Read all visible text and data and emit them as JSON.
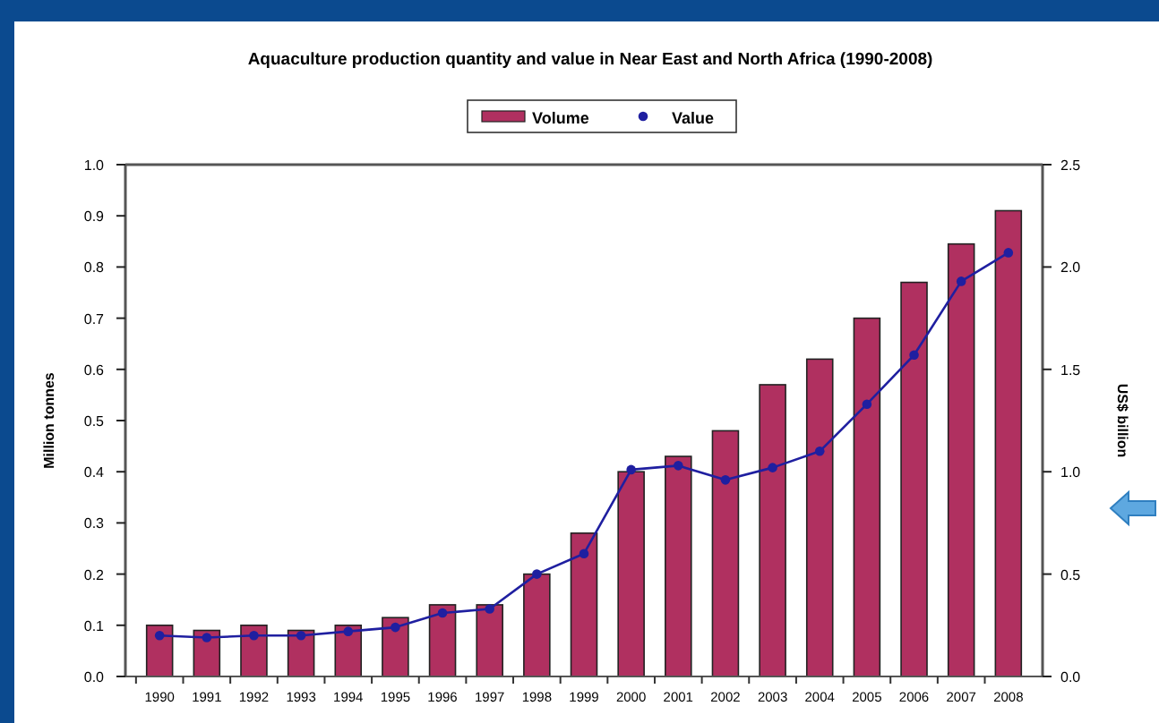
{
  "chart_data": {
    "type": "bar",
    "title": "Aquaculture production quantity and value in Near East and North Africa (1990-2008)",
    "categories": [
      "1990",
      "1991",
      "1992",
      "1993",
      "1994",
      "1995",
      "1996",
      "1997",
      "1998",
      "1999",
      "2000",
      "2001",
      "2002",
      "2003",
      "2004",
      "2005",
      "2006",
      "2007",
      "2008"
    ],
    "series": [
      {
        "name": "Volume",
        "color": "#b03060",
        "values": [
          0.1,
          0.09,
          0.1,
          0.09,
          0.1,
          0.115,
          0.14,
          0.14,
          0.2,
          0.28,
          0.4,
          0.43,
          0.48,
          0.57,
          0.62,
          0.7,
          0.77,
          0.845,
          0.91
        ]
      },
      {
        "name": "Value",
        "type": "line",
        "axis": "y2",
        "color": "#1f1fa0",
        "values": [
          0.2,
          0.19,
          0.2,
          0.2,
          0.22,
          0.24,
          0.31,
          0.33,
          0.5,
          0.6,
          1.01,
          1.03,
          0.96,
          1.02,
          1.1,
          1.33,
          1.57,
          1.93,
          2.07
        ]
      }
    ],
    "ylabel": "Million tonnes",
    "y2label": "US$ billion",
    "ylim": [
      0,
      1
    ],
    "yticks": [
      {
        "value": 0,
        "label": "0.0"
      },
      0.1,
      0.2,
      0.3,
      0.4,
      0.5,
      0.6,
      0.7,
      0.8,
      0.9,
      {
        "value": 1,
        "label": "1.0"
      }
    ],
    "y2lim": [
      0,
      2.5
    ],
    "y2ticks": [
      {
        "value": 0,
        "label": "0.0"
      },
      0.5,
      {
        "value": 1,
        "label": "1.0"
      },
      1.5,
      {
        "value": 2,
        "label": "2.0"
      },
      2.5
    ],
    "legend": "top",
    "grid": false,
    "marker": "circle",
    "line_style": "solid"
  }
}
